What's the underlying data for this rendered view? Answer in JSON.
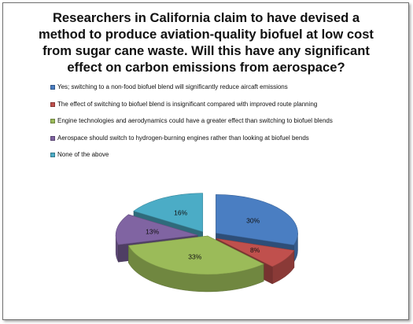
{
  "chart_data": {
    "type": "pie",
    "title": "Researchers in California claim to have devised a method to produce aviation-quality biofuel at low cost from sugar cane waste. Will this have any significant effect on carbon emissions from aerospace?",
    "title_lines": [
      "Researchers in California claim to have devised a",
      "method to produce aviation-quality biofuel at low cost",
      "from sugar cane waste. Will this have any significant",
      "effect on carbon emissions from aerospace?"
    ],
    "legend_position": "top",
    "slices": [
      {
        "label": "Yes; switching to a non-food biofuel blend will significantly reduce aircaft emissions",
        "value": 30,
        "value_label": "30%",
        "color": "#4a7ec2",
        "explode": true
      },
      {
        "label": "The effect of switching to biofuel blend is insignificant compared with improved route planning",
        "value": 8,
        "value_label": "8%",
        "color": "#c0504d",
        "explode": true
      },
      {
        "label": "Engine technologies and aerodynamics could have a greater effect than switching to biofuel blends",
        "value": 33,
        "value_label": "33%",
        "color": "#9bbb59",
        "explode": false
      },
      {
        "label": "Aerospace should switch to hydrogen-burning engines rather than looking at biofuel bends",
        "value": 13,
        "value_label": "13%",
        "color": "#8064a2",
        "explode": true
      },
      {
        "label": "None of the above",
        "value": 16,
        "value_label": "16%",
        "color": "#4bacc6",
        "explode": true
      }
    ]
  }
}
